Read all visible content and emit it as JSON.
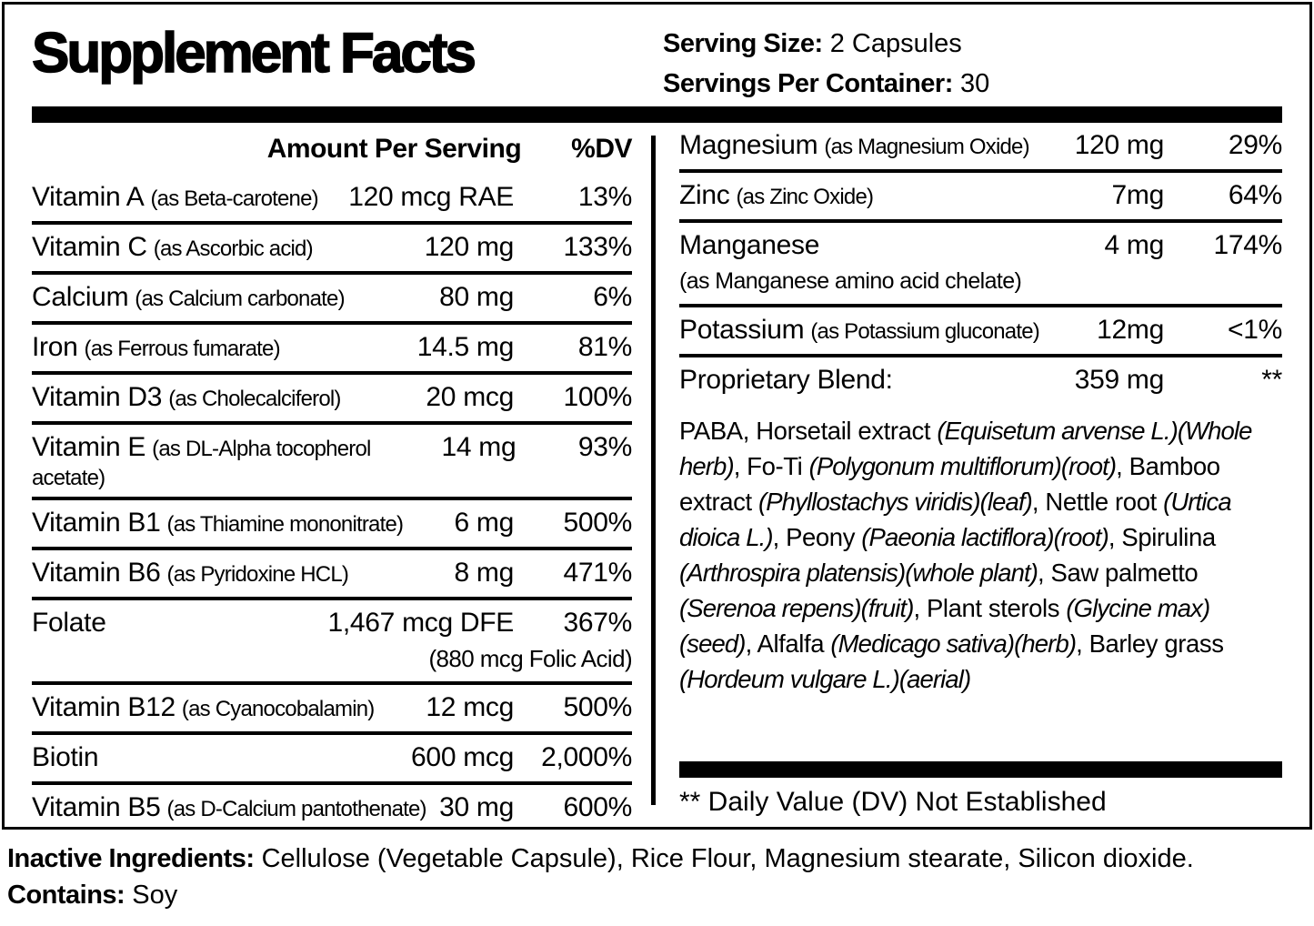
{
  "header": {
    "title": "Supplement Facts",
    "serving_size_label": "Serving Size:",
    "serving_size_value": "2 Capsules",
    "servings_per_container_label": "Servings Per Container:",
    "servings_per_container_value": "30"
  },
  "left_column": {
    "header_amount": "Amount Per Serving",
    "header_dv": "%DV",
    "rows": [
      {
        "name": "Vitamin A",
        "form": "(as Beta-carotene)",
        "amount": "120 mcg RAE",
        "dv": "13%"
      },
      {
        "name": "Vitamin C",
        "form": "(as Ascorbic acid)",
        "amount": "120 mg",
        "dv": "133%"
      },
      {
        "name": "Calcium",
        "form": "(as Calcium carbonate)",
        "amount": "80 mg",
        "dv": "6%"
      },
      {
        "name": "Iron",
        "form": "(as Ferrous fumarate)",
        "amount": "14.5 mg",
        "dv": "81%"
      },
      {
        "name": "Vitamin D3",
        "form": "(as Cholecalciferol)",
        "amount": "20 mcg",
        "dv": "100%"
      },
      {
        "name": "Vitamin E",
        "form": "(as DL-Alpha tocopherol acetate)",
        "amount": "14 mg",
        "dv": "93%"
      },
      {
        "name": "Vitamin B1",
        "form": "(as Thiamine mononitrate)",
        "amount": "6 mg",
        "dv": "500%"
      },
      {
        "name": "Vitamin B6",
        "form": "(as Pyridoxine HCL)",
        "amount": "8 mg",
        "dv": "471%"
      },
      {
        "name": "Folate",
        "form": "",
        "amount": "1,467 mcg DFE",
        "dv": "367%",
        "note": "(880 mcg Folic Acid)"
      },
      {
        "name": "Vitamin B12",
        "form": "(as Cyanocobalamin)",
        "amount": "12 mcg",
        "dv": "500%"
      },
      {
        "name": "Biotin",
        "form": "",
        "amount": "600 mcg",
        "dv": "2,000%"
      },
      {
        "name": "Vitamin B5",
        "form": "(as D-Calcium pantothenate)",
        "amount": "30 mg",
        "dv": "600%"
      }
    ]
  },
  "right_column": {
    "rows": [
      {
        "name": "Magnesium",
        "form": "(as Magnesium Oxide)",
        "amount": "120 mg",
        "dv": "29%"
      },
      {
        "name": "Zinc",
        "form": "(as Zinc Oxide)",
        "amount": "7mg",
        "dv": "64%"
      },
      {
        "name": "Manganese",
        "form": "",
        "amount": "4 mg",
        "dv": "174%",
        "note": "(as Manganese amino acid chelate)"
      },
      {
        "name": "Potassium",
        "form": "(as Potassium gluconate)",
        "amount": "12mg",
        "dv": "<1%"
      },
      {
        "name": "Proprietary Blend:",
        "form": "",
        "amount": "359 mg",
        "dv": "**"
      }
    ],
    "blend_segments": [
      {
        "text": "PABA, Horsetail extract ",
        "italic": false
      },
      {
        "text": "(Equisetum arvense L.)(Whole herb)",
        "italic": true
      },
      {
        "text": ", Fo-Ti ",
        "italic": false
      },
      {
        "text": "(Polygonum multiflorum)(root)",
        "italic": true
      },
      {
        "text": ", Bamboo extract ",
        "italic": false
      },
      {
        "text": "(Phyllostachys viridis)(leaf)",
        "italic": true
      },
      {
        "text": ", Nettle root ",
        "italic": false
      },
      {
        "text": "(Urtica dioica L.)",
        "italic": true
      },
      {
        "text": ",  Peony ",
        "italic": false
      },
      {
        "text": "(Paeonia lactiflora)(root)",
        "italic": true
      },
      {
        "text": ", Spirulina ",
        "italic": false
      },
      {
        "text": "(Arthrospira platensis)(whole plant)",
        "italic": true
      },
      {
        "text": ", Saw palmetto ",
        "italic": false
      },
      {
        "text": "(Serenoa repens)(fruit)",
        "italic": true
      },
      {
        "text": ", Plant sterols ",
        "italic": false
      },
      {
        "text": "(Glycine max)(seed)",
        "italic": true
      },
      {
        "text": ", Alfalfa ",
        "italic": false
      },
      {
        "text": "(Medicago sativa)(herb)",
        "italic": true
      },
      {
        "text": ", Barley grass ",
        "italic": false
      },
      {
        "text": "(Hordeum vulgare L.)(aerial)",
        "italic": true
      }
    ],
    "footnote": "** Daily Value (DV) Not Established"
  },
  "footer": {
    "inactive_label": "Inactive Ingredients:",
    "inactive_value": "Cellulose (Vegetable Capsule), Rice Flour, Magnesium stearate, Silicon dioxide.",
    "contains_label": "Contains:",
    "contains_value": "Soy"
  },
  "colors": {
    "ink": "#000000",
    "paper": "#ffffff"
  }
}
